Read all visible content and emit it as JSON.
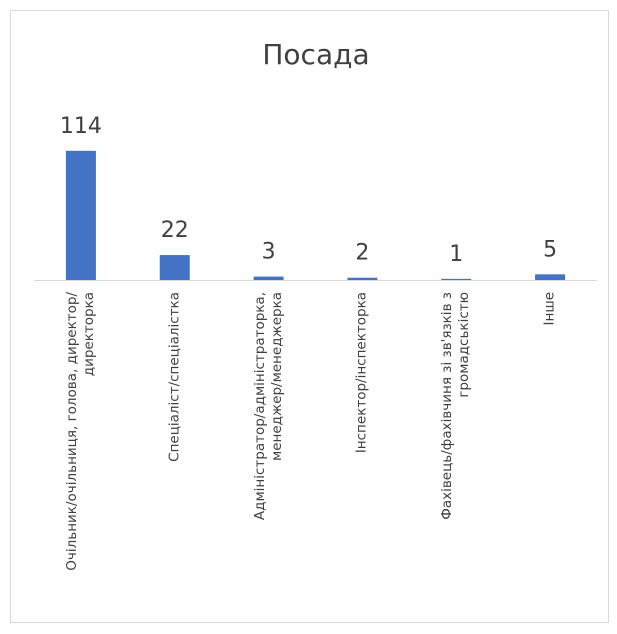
{
  "chart_data": {
    "type": "bar",
    "title": "Посада",
    "categories": [
      "Очільник/очільниця, голова, директор/директорка",
      "Спеціаліст/спеціалістка",
      "Адміністратор/адміністраторка, менеджер/менеджерка",
      "Інспектор/інспекторка",
      "Фахівець/фахівчиня зі зв'язків з громадськістю",
      "Інше"
    ],
    "values": [
      114,
      22,
      3,
      2,
      1,
      5
    ],
    "color": "#4472c4",
    "ylim": [
      0,
      120
    ]
  }
}
